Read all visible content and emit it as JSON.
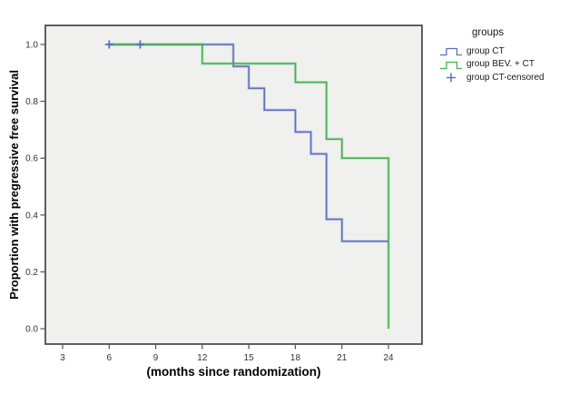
{
  "figure": {
    "y_axis_title": "Proportion with pregressive free survival",
    "x_axis_title": "(months since randomization)"
  },
  "legend": {
    "title": "groups",
    "entries": [
      {
        "label": "group CT",
        "symbol": "step-line",
        "color": "#5c6fc0"
      },
      {
        "label": "group BEV. + CT",
        "symbol": "step-line",
        "color": "#41b14d"
      },
      {
        "label": "group CT-censored",
        "symbol": "plus",
        "color": "#5c6fc0"
      }
    ]
  },
  "chart_data": {
    "type": "line",
    "subtype": "kaplan-meier-step-function",
    "title": "",
    "xlabel": "(months since randomization)",
    "ylabel": "Proportion with pregressive free survival",
    "plot_bg": "#f0f0ee",
    "frame_color": "#4e4e4e",
    "tick_color": "#333333",
    "axis_mark_color": "#4e4e4e",
    "grid": false,
    "legend_position": "right",
    "xlim": [
      1.89,
      26.16
    ],
    "ylim": [
      -0.054,
      1.067
    ],
    "x_ticks": [
      {
        "value": 3,
        "label": "3"
      },
      {
        "value": 6,
        "label": "6"
      },
      {
        "value": 9,
        "label": "9"
      },
      {
        "value": 12,
        "label": "12"
      },
      {
        "value": 15,
        "label": "15"
      },
      {
        "value": 18,
        "label": "18"
      },
      {
        "value": 21,
        "label": "21"
      },
      {
        "value": 24,
        "label": "24"
      }
    ],
    "y_ticks": [
      {
        "value": 0.0,
        "label": "0.0"
      },
      {
        "value": 0.2,
        "label": "0.2"
      },
      {
        "value": 0.4,
        "label": "0.4"
      },
      {
        "value": 0.6,
        "label": "0.6"
      },
      {
        "value": 0.8,
        "label": "0.8"
      },
      {
        "value": 1.0,
        "label": "1.0"
      }
    ],
    "series": [
      {
        "name": "group CT",
        "color": "#5c6fc0",
        "points": [
          [
            6,
            1.0
          ],
          [
            14,
            1.0
          ],
          [
            14,
            0.923
          ],
          [
            15,
            0.923
          ],
          [
            15,
            0.846
          ],
          [
            16,
            0.846
          ],
          [
            16,
            0.769
          ],
          [
            18,
            0.769
          ],
          [
            18,
            0.692
          ],
          [
            19,
            0.692
          ],
          [
            19,
            0.615
          ],
          [
            20,
            0.615
          ],
          [
            20,
            0.385
          ],
          [
            21,
            0.385
          ],
          [
            21,
            0.308
          ],
          [
            24,
            0.308
          ]
        ]
      },
      {
        "name": "group BEV. + CT",
        "color": "#41b14d",
        "points": [
          [
            6,
            1.0
          ],
          [
            12,
            1.0
          ],
          [
            12,
            0.933
          ],
          [
            18,
            0.933
          ],
          [
            18,
            0.867
          ],
          [
            20,
            0.867
          ],
          [
            20,
            0.667
          ],
          [
            21,
            0.667
          ],
          [
            21,
            0.6
          ],
          [
            24,
            0.6
          ],
          [
            24,
            0.0
          ]
        ]
      }
    ],
    "censored": {
      "name": "group CT-censored",
      "color": "#5c6fc0",
      "points": [
        [
          6,
          1.0
        ],
        [
          8,
          1.0
        ]
      ]
    }
  }
}
